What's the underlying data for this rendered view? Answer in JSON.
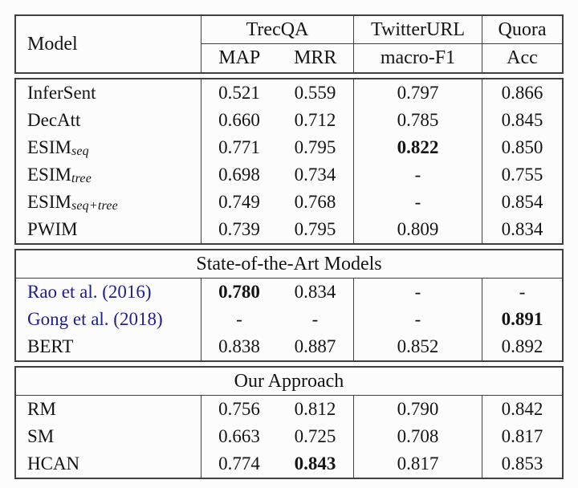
{
  "colors": {
    "citation": "#20208a",
    "border": "#3f3f3f",
    "text": "#141414",
    "bg": "#fcfcfc"
  },
  "table": {
    "header": {
      "model": "Model",
      "trecqa": "TrecQA",
      "map": "MAP",
      "mrr": "MRR",
      "twitterurl": "TwitterURL",
      "macro_f1": "macro-F1",
      "quora": "Quora",
      "acc": "Acc"
    },
    "baseline_rows": [
      {
        "model": "InferSent",
        "map": "0.521",
        "mrr": "0.559",
        "macro_f1": "0.797",
        "acc": "0.866"
      },
      {
        "model": "DecAtt",
        "map": "0.660",
        "mrr": "0.712",
        "macro_f1": "0.785",
        "acc": "0.845"
      },
      {
        "model": "ESIM",
        "model_sub": "seq",
        "map": "0.771",
        "mrr": "0.795",
        "macro_f1": "0.822",
        "acc": "0.850"
      },
      {
        "model": "ESIM",
        "model_sub": "tree",
        "map": "0.698",
        "mrr": "0.734",
        "macro_f1": "-",
        "acc": "0.755"
      },
      {
        "model": "ESIM",
        "model_sub": "seq+tree",
        "map": "0.749",
        "mrr": "0.768",
        "macro_f1": "-",
        "acc": "0.854"
      },
      {
        "model": "PWIM",
        "map": "0.739",
        "mrr": "0.795",
        "macro_f1": "0.809",
        "acc": "0.834"
      }
    ],
    "sota_section": {
      "title": "State-of-the-Art Models",
      "rows": [
        {
          "model": "Rao et al. (2016)",
          "map": "0.780",
          "mrr": "0.834",
          "macro_f1": "-",
          "acc": "-"
        },
        {
          "model": "Gong et al. (2018)",
          "map": "-",
          "mrr": "-",
          "macro_f1": "-",
          "acc": "0.891"
        },
        {
          "model": "BERT",
          "map": "0.838",
          "mrr": "0.887",
          "macro_f1": "0.852",
          "acc": "0.892"
        }
      ]
    },
    "ours_section": {
      "title": "Our Approach",
      "rows": [
        {
          "model": "RM",
          "map": "0.756",
          "mrr": "0.812",
          "macro_f1": "0.790",
          "acc": "0.842"
        },
        {
          "model": "SM",
          "map": "0.663",
          "mrr": "0.725",
          "macro_f1": "0.708",
          "acc": "0.817"
        },
        {
          "model": "HCAN",
          "map": "0.774",
          "mrr": "0.843",
          "macro_f1": "0.817",
          "acc": "0.853"
        }
      ]
    }
  }
}
